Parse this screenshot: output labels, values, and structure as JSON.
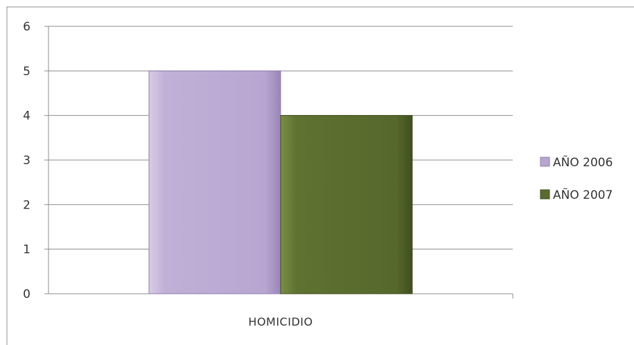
{
  "chart_data": {
    "type": "bar",
    "title": "",
    "xlabel": "",
    "ylabel": "",
    "categories": [
      "HOMICIDIO"
    ],
    "series": [
      {
        "name": "AÑO 2006",
        "values": [
          5
        ],
        "color": "#b8a6d1"
      },
      {
        "name": "AÑO 2007",
        "values": [
          4
        ],
        "color": "#596a2e"
      }
    ],
    "ylim": [
      0,
      6
    ],
    "yticks": [
      "0",
      "1",
      "2",
      "3",
      "4",
      "5",
      "6"
    ],
    "grid": true,
    "legend": "right"
  }
}
